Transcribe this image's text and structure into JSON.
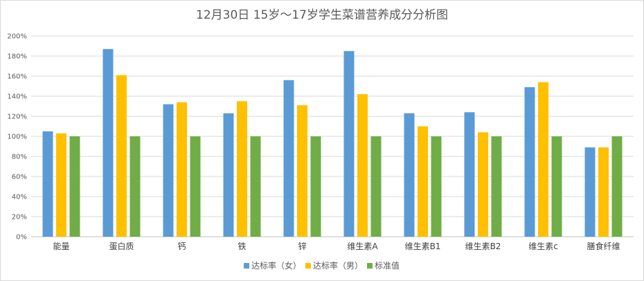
{
  "chart_data": {
    "type": "bar",
    "title": "12月30日 15岁～17岁学生菜谱营养成分分析图",
    "xlabel": "",
    "ylabel": "",
    "ylim": [
      0,
      200
    ],
    "yticks": [
      "0%",
      "20%",
      "40%",
      "60%",
      "80%",
      "100%",
      "120%",
      "140%",
      "160%",
      "180%",
      "200%"
    ],
    "grid": true,
    "legend_position": "bottom",
    "categories": [
      "能量",
      "蛋白质",
      "钙",
      "铁",
      "锌",
      "维生素A",
      "维生素B1",
      "维生素B2",
      "维生素c",
      "膳食纤维"
    ],
    "series": [
      {
        "name": "达标率（女）",
        "color": "#5b9bd5",
        "values": [
          105,
          187,
          132,
          123,
          156,
          185,
          123,
          124,
          149,
          89
        ]
      },
      {
        "name": "达标率（男）",
        "color": "#ffc000",
        "values": [
          103,
          161,
          134,
          135,
          131,
          142,
          110,
          104,
          154,
          89
        ]
      },
      {
        "name": "标准值",
        "color": "#70ad47",
        "values": [
          100,
          100,
          100,
          100,
          100,
          100,
          100,
          100,
          100,
          100
        ]
      }
    ]
  }
}
